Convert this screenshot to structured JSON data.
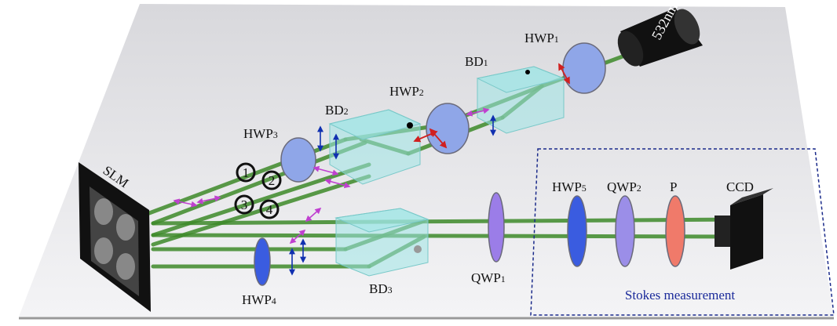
{
  "laser": "532nm",
  "hwp1": {
    "main": "HWP",
    "sub": "1"
  },
  "bd1": {
    "main": "BD",
    "sub": "1"
  },
  "hwp2": {
    "main": "HWP",
    "sub": "2"
  },
  "bd2": {
    "main": "BD",
    "sub": "2"
  },
  "hwp3": {
    "main": "HWP",
    "sub": "3"
  },
  "slm": "SLM",
  "paths": [
    "1",
    "2",
    "3",
    "4"
  ],
  "hwp4": {
    "main": "HWP",
    "sub": "4"
  },
  "bd3": {
    "main": "BD",
    "sub": "3"
  },
  "qwp1": {
    "main": "QWP",
    "sub": "1"
  },
  "hwp5": {
    "main": "HWP",
    "sub": "5"
  },
  "qwp2": {
    "main": "QWP",
    "sub": "2"
  },
  "polarizer": "P",
  "camera": "CCD",
  "box_label": "Stokes measurement"
}
